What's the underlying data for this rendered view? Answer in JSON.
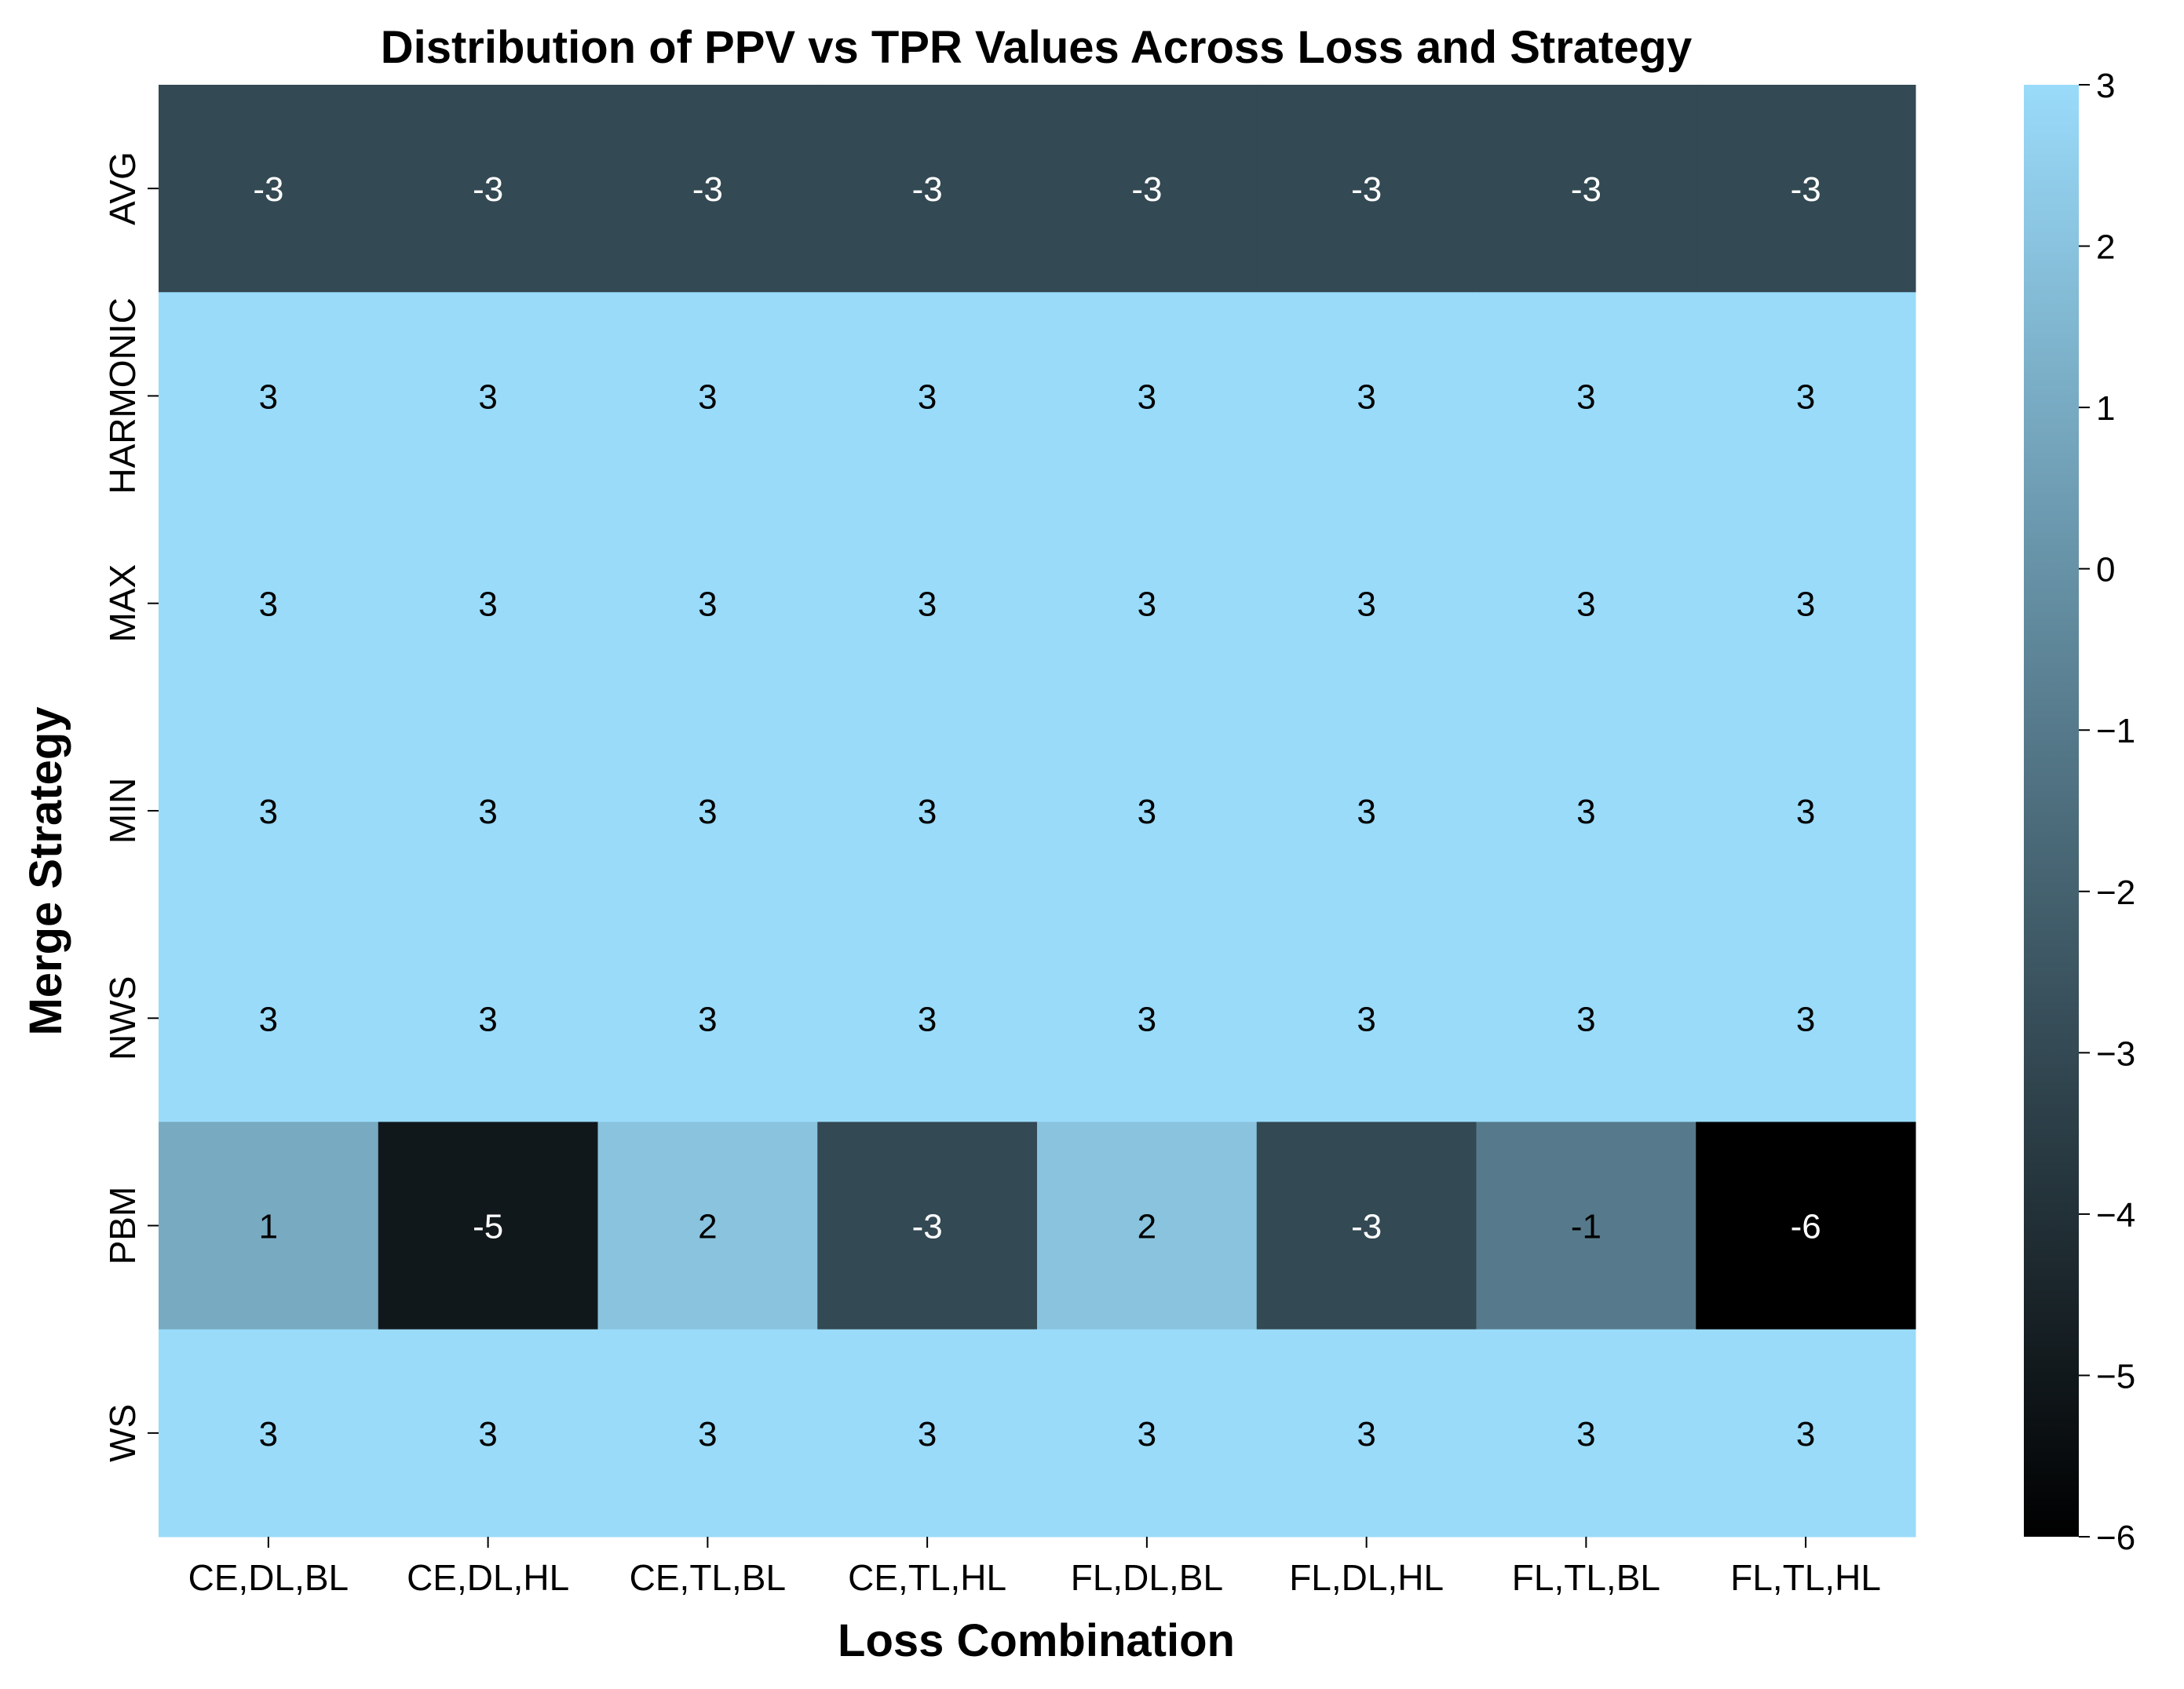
{
  "chart_data": {
    "type": "heatmap",
    "title": "Distribution of PPV vs TPR Values Across Loss and Strategy",
    "xlabel": "Loss Combination",
    "ylabel": "Merge Strategy",
    "x_categories": [
      "CE,DL,BL",
      "CE,DL,HL",
      "CE,TL,BL",
      "CE,TL,HL",
      "FL,DL,BL",
      "FL,DL,HL",
      "FL,TL,BL",
      "FL,TL,HL"
    ],
    "y_categories": [
      "AVG",
      "HARMONIC",
      "MAX",
      "MIN",
      "NWS",
      "PBM",
      "WS"
    ],
    "values": [
      [
        -3,
        -3,
        -3,
        -3,
        -3,
        -3,
        -3,
        -3
      ],
      [
        3,
        3,
        3,
        3,
        3,
        3,
        3,
        3
      ],
      [
        3,
        3,
        3,
        3,
        3,
        3,
        3,
        3
      ],
      [
        3,
        3,
        3,
        3,
        3,
        3,
        3,
        3
      ],
      [
        3,
        3,
        3,
        3,
        3,
        3,
        3,
        3
      ],
      [
        1,
        -5,
        2,
        -3,
        2,
        -3,
        -1,
        -6
      ],
      [
        3,
        3,
        3,
        3,
        3,
        3,
        3,
        3
      ]
    ],
    "annotations": true,
    "colorbar": {
      "min": -6,
      "max": 3,
      "ticks": [
        3,
        2,
        1,
        0,
        -1,
        -2,
        -3,
        -4,
        -5,
        -6
      ],
      "tick_labels": [
        "3",
        "2",
        "1",
        "0",
        "−1",
        "−2",
        "−3",
        "−4",
        "−5",
        "−6"
      ],
      "color_low": "#000000",
      "color_high": "#9adbfa"
    }
  }
}
